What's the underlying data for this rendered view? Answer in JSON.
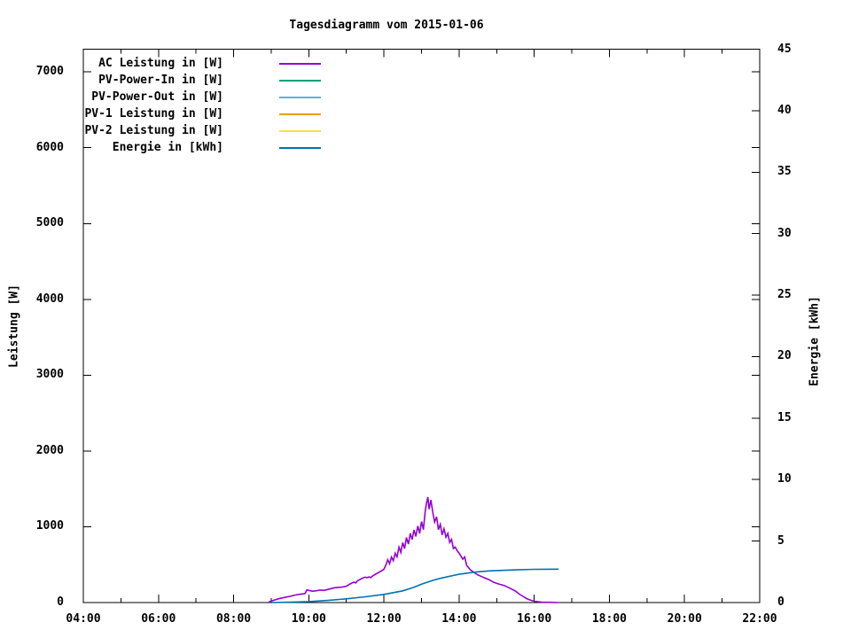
{
  "chart_data": {
    "type": "line",
    "title": "Tagesdiagramm vom 2015-01-06",
    "background": "#ffffff",
    "x_axis": {
      "range_hours": [
        4,
        22
      ],
      "tick_hours": [
        4,
        6,
        8,
        10,
        12,
        14,
        16,
        18,
        20,
        22
      ],
      "tick_labels": [
        "04:00",
        "06:00",
        "08:00",
        "10:00",
        "12:00",
        "14:00",
        "16:00",
        "18:00",
        "20:00",
        "22:00"
      ],
      "minor_tick_every_hours": 1
    },
    "y_axis_left": {
      "label": "Leistung [W]",
      "ticks": [
        0,
        1000,
        2000,
        3000,
        4000,
        5000,
        6000,
        7000
      ],
      "range": [
        0,
        7300
      ]
    },
    "y_axis_right": {
      "label": "Energie [kWh]",
      "ticks": [
        0,
        5,
        10,
        15,
        20,
        25,
        30,
        35,
        40,
        45
      ],
      "range": [
        0,
        45
      ]
    },
    "legend": [
      {
        "label": "AC Leistung in [W]",
        "color": "#9400d3"
      },
      {
        "label": "PV-Power-In in [W]",
        "color": "#009e73"
      },
      {
        "label": "PV-Power-Out in [W]",
        "color": "#56b4e9"
      },
      {
        "label": "PV-1 Leistung in [W]",
        "color": "#e69f00"
      },
      {
        "label": "PV-2 Leistung in [W]",
        "color": "#f0e442"
      },
      {
        "label": "Energie in [kWh]",
        "color": "#0072b2"
      }
    ],
    "series": [
      {
        "name": "AC Leistung in [W]",
        "axis": "left",
        "color": "#9400d3",
        "unit": "W",
        "points": [
          [
            8.92,
            0
          ],
          [
            9.0,
            20
          ],
          [
            9.1,
            35
          ],
          [
            9.2,
            50
          ],
          [
            9.3,
            62
          ],
          [
            9.4,
            72
          ],
          [
            9.5,
            82
          ],
          [
            9.6,
            95
          ],
          [
            9.7,
            105
          ],
          [
            9.8,
            112
          ],
          [
            9.9,
            118
          ],
          [
            9.95,
            168
          ],
          [
            10.0,
            160
          ],
          [
            10.1,
            150
          ],
          [
            10.2,
            156
          ],
          [
            10.3,
            165
          ],
          [
            10.4,
            160
          ],
          [
            10.5,
            172
          ],
          [
            10.6,
            185
          ],
          [
            10.7,
            196
          ],
          [
            10.8,
            200
          ],
          [
            10.9,
            206
          ],
          [
            11.0,
            215
          ],
          [
            11.1,
            245
          ],
          [
            11.2,
            270
          ],
          [
            11.25,
            258
          ],
          [
            11.3,
            288
          ],
          [
            11.4,
            315
          ],
          [
            11.5,
            335
          ],
          [
            11.55,
            328
          ],
          [
            11.6,
            338
          ],
          [
            11.65,
            330
          ],
          [
            11.7,
            352
          ],
          [
            11.8,
            380
          ],
          [
            11.9,
            408
          ],
          [
            12.0,
            440
          ],
          [
            12.05,
            492
          ],
          [
            12.1,
            565
          ],
          [
            12.15,
            512
          ],
          [
            12.2,
            600
          ],
          [
            12.25,
            552
          ],
          [
            12.3,
            650
          ],
          [
            12.35,
            602
          ],
          [
            12.4,
            730
          ],
          [
            12.45,
            662
          ],
          [
            12.5,
            790
          ],
          [
            12.55,
            712
          ],
          [
            12.6,
            858
          ],
          [
            12.65,
            772
          ],
          [
            12.7,
            912
          ],
          [
            12.75,
            832
          ],
          [
            12.8,
            958
          ],
          [
            12.85,
            872
          ],
          [
            12.9,
            1010
          ],
          [
            12.95,
            912
          ],
          [
            13.0,
            1068
          ],
          [
            13.05,
            962
          ],
          [
            13.1,
            1208
          ],
          [
            13.13,
            1302
          ],
          [
            13.17,
            1392
          ],
          [
            13.2,
            1232
          ],
          [
            13.25,
            1352
          ],
          [
            13.3,
            1192
          ],
          [
            13.35,
            1062
          ],
          [
            13.4,
            1132
          ],
          [
            13.45,
            962
          ],
          [
            13.5,
            1032
          ],
          [
            13.55,
            892
          ],
          [
            13.6,
            972
          ],
          [
            13.65,
            862
          ],
          [
            13.7,
            912
          ],
          [
            13.75,
            792
          ],
          [
            13.8,
            832
          ],
          [
            13.85,
            712
          ],
          [
            13.9,
            732
          ],
          [
            13.95,
            682
          ],
          [
            14.0,
            652
          ],
          [
            14.1,
            572
          ],
          [
            14.15,
            602
          ],
          [
            14.2,
            492
          ],
          [
            14.3,
            432
          ],
          [
            14.4,
            398
          ],
          [
            14.5,
            365
          ],
          [
            14.6,
            342
          ],
          [
            14.7,
            322
          ],
          [
            14.8,
            302
          ],
          [
            14.9,
            272
          ],
          [
            15.0,
            252
          ],
          [
            15.1,
            238
          ],
          [
            15.2,
            226
          ],
          [
            15.3,
            202
          ],
          [
            15.4,
            178
          ],
          [
            15.5,
            152
          ],
          [
            15.6,
            112
          ],
          [
            15.7,
            82
          ],
          [
            15.8,
            52
          ],
          [
            15.9,
            32
          ],
          [
            16.0,
            18
          ],
          [
            16.1,
            10
          ],
          [
            16.2,
            6
          ],
          [
            16.4,
            3
          ],
          [
            16.62,
            0
          ]
        ]
      },
      {
        "name": "Energie in [kWh]",
        "axis": "right",
        "color": "#0072b2",
        "unit": "kWh",
        "points": [
          [
            9.0,
            0
          ],
          [
            9.5,
            0.03
          ],
          [
            10.0,
            0.08
          ],
          [
            10.5,
            0.17
          ],
          [
            11.0,
            0.3
          ],
          [
            11.5,
            0.47
          ],
          [
            12.0,
            0.66
          ],
          [
            12.5,
            0.95
          ],
          [
            12.8,
            1.25
          ],
          [
            13.0,
            1.5
          ],
          [
            13.3,
            1.8
          ],
          [
            13.5,
            1.97
          ],
          [
            13.8,
            2.17
          ],
          [
            14.0,
            2.3
          ],
          [
            14.3,
            2.43
          ],
          [
            14.5,
            2.5
          ],
          [
            14.8,
            2.57
          ],
          [
            15.0,
            2.6
          ],
          [
            15.3,
            2.64
          ],
          [
            15.5,
            2.66
          ],
          [
            16.0,
            2.7
          ],
          [
            16.3,
            2.71
          ],
          [
            16.65,
            2.72
          ]
        ]
      },
      {
        "name": "PV-Power-In in [W]",
        "axis": "left",
        "color": "#009e73",
        "unit": "W",
        "points": []
      },
      {
        "name": "PV-Power-Out in [W]",
        "axis": "left",
        "color": "#56b4e9",
        "unit": "W",
        "points": []
      },
      {
        "name": "PV-1 Leistung in [W]",
        "axis": "left",
        "color": "#e69f00",
        "unit": "W",
        "points": []
      },
      {
        "name": "PV-2 Leistung in [W]",
        "axis": "left",
        "color": "#f0e442",
        "unit": "W",
        "points": []
      }
    ]
  }
}
